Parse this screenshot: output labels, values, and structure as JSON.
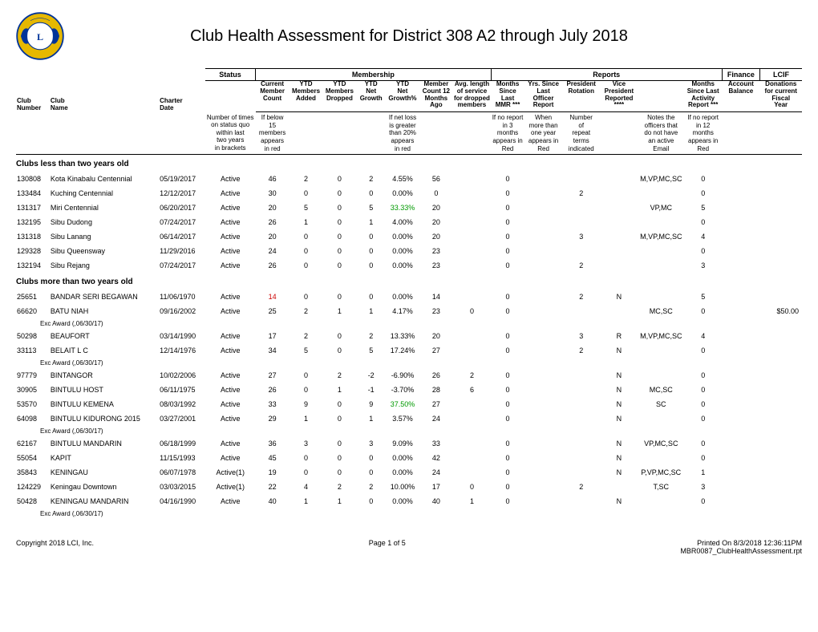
{
  "title": "Club Health Assessment for District 308 A2 through July 2018",
  "group_headers": {
    "status": "Status",
    "membership": "Membership",
    "reports": "Reports",
    "finance": "Finance",
    "lcif": "LCIF"
  },
  "col_headers": {
    "club_number": "Club\nNumber",
    "club_name": "Club\nName",
    "charter_date": "Charter\nDate",
    "status_note": "Number of times\non status quo\nwithin last\ntwo years\nin brackets",
    "current_member_count": "Current\nMember\nCount",
    "ytd_added": "YTD\nMembers\nAdded",
    "ytd_dropped": "YTD\nMembers\nDropped",
    "ytd_net_growth": "YTD\nNet\nGrowth",
    "ytd_net_growth_pct": "YTD\nNet\nGrowth%",
    "member_count_12": "Member\nCount 12\nMonths\nAgo",
    "avg_length_service": "Avg. length\nof service\nfor dropped\nmembers",
    "months_since_last_mmr": "Months\nSince\nLast\nMMR ***",
    "yrs_since_last_officer": "Yrs. Since\nLast\nOfficer\nReport",
    "president_rotation": "President\nRotation",
    "vice_president_reported": "Vice\nPresident\nReported\n****",
    "months_since_last_activity": "Months\nSince Last\nActivity\nReport ***",
    "account_balance": "Account\nBalance",
    "donations": "Donations\nfor current\nFiscal\nYear"
  },
  "notes": {
    "status": "",
    "member_count": "If below\n15\nmembers\nappears\nin red",
    "net_loss": "If net loss\nis greater\nthan 20%\nappears\nin red",
    "mmr": "If no report\nin 3\nmonths\nappears in\nRed",
    "officer": "When\nmore than\none year\nappears in\nRed",
    "rotation": "Number\nof\nrepeat\nterms\nindicated",
    "vp": "Notes the\nofficers that\ndo not have\nan active\nEmail",
    "activity": "If no report\nin 12\nmonths\nappears in\nRed"
  },
  "section_lt2": "Clubs less than two years old",
  "section_gt2": "Clubs more than two years old",
  "rows_lt2": [
    {
      "num": "130808",
      "name": "Kota Kinabalu Centennial",
      "date": "05/19/2017",
      "status": "Active",
      "cnt": "46",
      "add": "2",
      "drop": "0",
      "net": "2",
      "pct": "4.55%",
      "m12": "56",
      "avg": "",
      "mmr": "0",
      "yrs": "",
      "rot": "",
      "vp": "",
      "notes": "M,VP,MC,SC",
      "act": "0",
      "don": ""
    },
    {
      "num": "133484",
      "name": "Kuching Centennial",
      "date": "12/12/2017",
      "status": "Active",
      "cnt": "30",
      "add": "0",
      "drop": "0",
      "net": "0",
      "pct": "0.00%",
      "m12": "0",
      "avg": "",
      "mmr": "0",
      "yrs": "",
      "rot": "2",
      "vp": "",
      "notes": "",
      "act": "0",
      "don": ""
    },
    {
      "num": "131317",
      "name": "Miri Centennial",
      "date": "06/20/2017",
      "status": "Active",
      "cnt": "20",
      "add": "5",
      "drop": "0",
      "net": "5",
      "pct": "33.33%",
      "pct_green": true,
      "m12": "20",
      "avg": "",
      "mmr": "0",
      "yrs": "",
      "rot": "",
      "vp": "",
      "notes": "VP,MC",
      "act": "5",
      "don": ""
    },
    {
      "num": "132195",
      "name": "Sibu Dudong",
      "date": "07/24/2017",
      "status": "Active",
      "cnt": "26",
      "add": "1",
      "drop": "0",
      "net": "1",
      "pct": "4.00%",
      "m12": "20",
      "avg": "",
      "mmr": "0",
      "yrs": "",
      "rot": "",
      "vp": "",
      "notes": "",
      "act": "0",
      "don": ""
    },
    {
      "num": "131318",
      "name": "Sibu Lanang",
      "date": "06/14/2017",
      "status": "Active",
      "cnt": "20",
      "add": "0",
      "drop": "0",
      "net": "0",
      "pct": "0.00%",
      "m12": "20",
      "avg": "",
      "mmr": "0",
      "yrs": "",
      "rot": "3",
      "vp": "",
      "notes": "M,VP,MC,SC",
      "act": "4",
      "don": ""
    },
    {
      "num": "129328",
      "name": "Sibu Queensway",
      "date": "11/29/2016",
      "status": "Active",
      "cnt": "24",
      "add": "0",
      "drop": "0",
      "net": "0",
      "pct": "0.00%",
      "m12": "23",
      "avg": "",
      "mmr": "0",
      "yrs": "",
      "rot": "",
      "vp": "",
      "notes": "",
      "act": "0",
      "don": ""
    },
    {
      "num": "132194",
      "name": "Sibu Rejang",
      "date": "07/24/2017",
      "status": "Active",
      "cnt": "26",
      "add": "0",
      "drop": "0",
      "net": "0",
      "pct": "0.00%",
      "m12": "23",
      "avg": "",
      "mmr": "0",
      "yrs": "",
      "rot": "2",
      "vp": "",
      "notes": "",
      "act": "3",
      "don": ""
    }
  ],
  "rows_gt2": [
    {
      "num": "25651",
      "name": "BANDAR SERI BEGAWAN",
      "date": "11/06/1970",
      "status": "Active",
      "cnt": "14",
      "cnt_red": true,
      "add": "0",
      "drop": "0",
      "net": "0",
      "pct": "0.00%",
      "m12": "14",
      "avg": "",
      "mmr": "0",
      "yrs": "",
      "rot": "2",
      "vp": "N",
      "notes": "",
      "act": "5",
      "don": ""
    },
    {
      "num": "66620",
      "name": "BATU NIAH",
      "date": "09/16/2002",
      "status": "Active",
      "cnt": "25",
      "add": "2",
      "drop": "1",
      "net": "1",
      "pct": "4.17%",
      "m12": "23",
      "avg": "0",
      "mmr": "0",
      "yrs": "",
      "rot": "",
      "vp": "",
      "notes": "MC,SC",
      "act": "0",
      "don": "$50.00",
      "sub": "Exc Award (,06/30/17)"
    },
    {
      "num": "50298",
      "name": "BEAUFORT",
      "date": "03/14/1990",
      "status": "Active",
      "cnt": "17",
      "add": "2",
      "drop": "0",
      "net": "2",
      "pct": "13.33%",
      "m12": "20",
      "avg": "",
      "mmr": "0",
      "yrs": "",
      "rot": "3",
      "vp": "R",
      "notes": "M,VP,MC,SC",
      "act": "4",
      "don": ""
    },
    {
      "num": "33113",
      "name": "BELAIT L C",
      "date": "12/14/1976",
      "status": "Active",
      "cnt": "34",
      "add": "5",
      "drop": "0",
      "net": "5",
      "pct": "17.24%",
      "m12": "27",
      "avg": "",
      "mmr": "0",
      "yrs": "",
      "rot": "2",
      "vp": "N",
      "notes": "",
      "act": "0",
      "don": "",
      "sub": "Exc Award (,06/30/17)"
    },
    {
      "num": "97779",
      "name": "BINTANGOR",
      "date": "10/02/2006",
      "status": "Active",
      "cnt": "27",
      "add": "0",
      "drop": "2",
      "net": "-2",
      "pct": "-6.90%",
      "m12": "26",
      "avg": "2",
      "mmr": "0",
      "yrs": "",
      "rot": "",
      "vp": "N",
      "notes": "",
      "act": "0",
      "don": ""
    },
    {
      "num": "30905",
      "name": "BINTULU HOST",
      "date": "06/11/1975",
      "status": "Active",
      "cnt": "26",
      "add": "0",
      "drop": "1",
      "net": "-1",
      "pct": "-3.70%",
      "m12": "28",
      "avg": "6",
      "mmr": "0",
      "yrs": "",
      "rot": "",
      "vp": "N",
      "notes": "MC,SC",
      "act": "0",
      "don": ""
    },
    {
      "num": "53570",
      "name": "BINTULU KEMENA",
      "date": "08/03/1992",
      "status": "Active",
      "cnt": "33",
      "add": "9",
      "drop": "0",
      "net": "9",
      "pct": "37.50%",
      "pct_green": true,
      "m12": "27",
      "avg": "",
      "mmr": "0",
      "yrs": "",
      "rot": "",
      "vp": "N",
      "notes": "SC",
      "act": "0",
      "don": ""
    },
    {
      "num": "64098",
      "name": "BINTULU KIDURONG 2015",
      "date": "03/27/2001",
      "status": "Active",
      "cnt": "29",
      "add": "1",
      "drop": "0",
      "net": "1",
      "pct": "3.57%",
      "m12": "24",
      "avg": "",
      "mmr": "0",
      "yrs": "",
      "rot": "",
      "vp": "N",
      "notes": "",
      "act": "0",
      "don": "",
      "sub": "Exc Award (,06/30/17)"
    },
    {
      "num": "62167",
      "name": "BINTULU MANDARIN",
      "date": "06/18/1999",
      "status": "Active",
      "cnt": "36",
      "add": "3",
      "drop": "0",
      "net": "3",
      "pct": "9.09%",
      "m12": "33",
      "avg": "",
      "mmr": "0",
      "yrs": "",
      "rot": "",
      "vp": "N",
      "notes": "VP,MC,SC",
      "act": "0",
      "don": ""
    },
    {
      "num": "55054",
      "name": "KAPIT",
      "date": "11/15/1993",
      "status": "Active",
      "cnt": "45",
      "add": "0",
      "drop": "0",
      "net": "0",
      "pct": "0.00%",
      "m12": "42",
      "avg": "",
      "mmr": "0",
      "yrs": "",
      "rot": "",
      "vp": "N",
      "notes": "",
      "act": "0",
      "don": ""
    },
    {
      "num": "35843",
      "name": "KENINGAU",
      "date": "06/07/1978",
      "status": "Active(1)",
      "cnt": "19",
      "add": "0",
      "drop": "0",
      "net": "0",
      "pct": "0.00%",
      "m12": "24",
      "avg": "",
      "mmr": "0",
      "yrs": "",
      "rot": "",
      "vp": "N",
      "notes": "P,VP,MC,SC",
      "act": "1",
      "don": ""
    },
    {
      "num": "124229",
      "name": "Keningau Downtown",
      "date": "03/03/2015",
      "status": "Active(1)",
      "cnt": "22",
      "add": "4",
      "drop": "2",
      "net": "2",
      "pct": "10.00%",
      "m12": "17",
      "avg": "0",
      "mmr": "0",
      "yrs": "",
      "rot": "2",
      "vp": "",
      "notes": "T,SC",
      "act": "3",
      "don": ""
    },
    {
      "num": "50428",
      "name": "KENINGAU MANDARIN",
      "date": "04/16/1990",
      "status": "Active",
      "cnt": "40",
      "add": "1",
      "drop": "1",
      "net": "0",
      "pct": "0.00%",
      "m12": "40",
      "avg": "1",
      "mmr": "0",
      "yrs": "",
      "rot": "",
      "vp": "N",
      "notes": "",
      "act": "0",
      "don": "",
      "sub": "Exc Award (,06/30/17)"
    }
  ],
  "footer": {
    "copyright": "Copyright 2018 LCI, Inc.",
    "page": "Page 1 of 5",
    "printed": "Printed On 8/3/2018 12:36:11PM",
    "report": "MBR0087_ClubHealthAssessment.rpt"
  },
  "logo_colors": {
    "gold": "#e6b800",
    "blue": "#003399",
    "white": "#ffffff"
  }
}
